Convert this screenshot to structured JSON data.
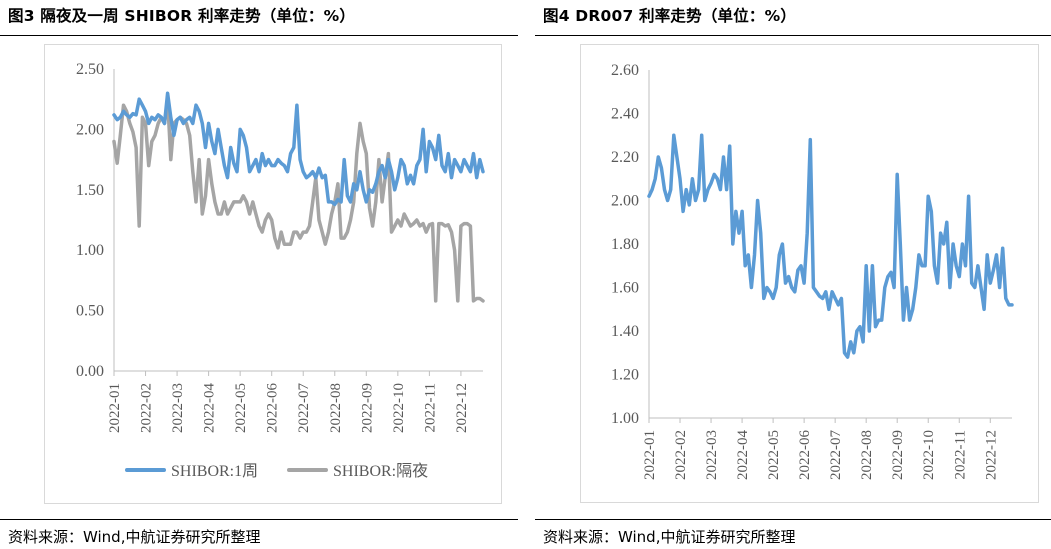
{
  "charts": [
    {
      "title": "图3  隔夜及一周 SHIBOR 利率走势（单位：%）",
      "source": "资料来源：Wind,中航证券研究所整理"
    },
    {
      "title": "图4  DR007 利率走势（单位：%）",
      "source": "资料来源：Wind,中航证券研究所整理"
    }
  ],
  "chart_data": [
    {
      "type": "line",
      "title": "图3  隔夜及一周 SHIBOR 利率走势（单位：%）",
      "x_ticks": [
        "2022-01",
        "2022-02",
        "2022-03",
        "2022-04",
        "2022-05",
        "2022-06",
        "2022-07",
        "2022-08",
        "2022-09",
        "2022-10",
        "2022-11",
        "2022-12"
      ],
      "y_ticks": [
        "0.00",
        "0.50",
        "1.00",
        "1.50",
        "2.00",
        "2.50"
      ],
      "ylim": [
        0,
        2.5
      ],
      "xlim": [
        0,
        11.7
      ],
      "grid": false,
      "legend_position": "bottom",
      "series": [
        {
          "name": "SHIBOR:1周",
          "color": "#5B9BD5",
          "x": [
            0.0,
            0.1,
            0.2,
            0.3,
            0.4,
            0.5,
            0.6,
            0.7,
            0.8,
            0.9,
            1.0,
            1.1,
            1.2,
            1.3,
            1.4,
            1.5,
            1.6,
            1.7,
            1.8,
            1.9,
            2.0,
            2.1,
            2.2,
            2.3,
            2.4,
            2.5,
            2.6,
            2.7,
            2.8,
            2.9,
            3.0,
            3.1,
            3.2,
            3.3,
            3.4,
            3.5,
            3.6,
            3.7,
            3.8,
            3.9,
            4.0,
            4.1,
            4.2,
            4.3,
            4.4,
            4.5,
            4.6,
            4.7,
            4.8,
            4.9,
            5.0,
            5.1,
            5.2,
            5.3,
            5.4,
            5.5,
            5.6,
            5.7,
            5.8,
            5.9,
            6.0,
            6.1,
            6.2,
            6.3,
            6.4,
            6.5,
            6.6,
            6.7,
            6.8,
            6.9,
            7.0,
            7.1,
            7.2,
            7.3,
            7.4,
            7.5,
            7.6,
            7.7,
            7.8,
            7.9,
            8.0,
            8.1,
            8.2,
            8.3,
            8.4,
            8.5,
            8.6,
            8.7,
            8.8,
            8.9,
            9.0,
            9.1,
            9.2,
            9.3,
            9.4,
            9.5,
            9.6,
            9.7,
            9.8,
            9.9,
            10.0,
            10.1,
            10.2,
            10.3,
            10.4,
            10.5,
            10.6,
            10.7,
            10.8,
            10.9,
            11.0,
            11.1,
            11.2,
            11.3,
            11.4,
            11.5,
            11.6,
            11.7
          ],
          "values": [
            2.12,
            2.08,
            2.1,
            2.15,
            2.12,
            2.1,
            2.13,
            2.12,
            2.25,
            2.2,
            2.15,
            2.05,
            2.1,
            2.08,
            2.12,
            2.1,
            2.05,
            2.3,
            2.1,
            1.95,
            2.08,
            2.1,
            2.05,
            2.08,
            2.1,
            2.05,
            2.2,
            2.15,
            2.05,
            1.85,
            2.05,
            1.9,
            1.8,
            2.0,
            1.85,
            1.7,
            1.6,
            1.85,
            1.72,
            1.65,
            2.0,
            1.95,
            1.85,
            1.65,
            1.7,
            1.75,
            1.65,
            1.8,
            1.7,
            1.75,
            1.7,
            1.7,
            1.75,
            1.72,
            1.7,
            1.65,
            1.8,
            1.85,
            2.2,
            1.75,
            1.65,
            1.6,
            1.62,
            1.65,
            1.6,
            1.68,
            1.6,
            1.62,
            1.4,
            1.4,
            1.38,
            1.42,
            1.4,
            1.75,
            1.45,
            1.4,
            1.55,
            1.5,
            1.65,
            1.5,
            1.4,
            1.5,
            1.48,
            1.55,
            1.65,
            1.7,
            1.6,
            1.75,
            1.65,
            1.5,
            1.6,
            1.75,
            1.7,
            1.55,
            1.62,
            1.55,
            1.7,
            1.75,
            2.0,
            1.65,
            1.9,
            1.85,
            1.75,
            1.95,
            1.7,
            1.65,
            1.8,
            1.6,
            1.75,
            1.7,
            1.65,
            1.75,
            1.7,
            1.65,
            1.8,
            1.6,
            1.75,
            1.65
          ]
        },
        {
          "name": "SHIBOR:隔夜",
          "color": "#A5A5A5",
          "x": [
            0.0,
            0.1,
            0.2,
            0.3,
            0.4,
            0.5,
            0.6,
            0.7,
            0.8,
            0.9,
            1.0,
            1.1,
            1.2,
            1.3,
            1.4,
            1.5,
            1.6,
            1.7,
            1.8,
            1.9,
            2.0,
            2.1,
            2.2,
            2.3,
            2.4,
            2.5,
            2.6,
            2.7,
            2.8,
            2.9,
            3.0,
            3.1,
            3.2,
            3.3,
            3.4,
            3.5,
            3.6,
            3.7,
            3.8,
            3.9,
            4.0,
            4.1,
            4.2,
            4.3,
            4.4,
            4.5,
            4.6,
            4.7,
            4.8,
            4.9,
            5.0,
            5.1,
            5.2,
            5.3,
            5.4,
            5.5,
            5.6,
            5.7,
            5.8,
            5.9,
            6.0,
            6.1,
            6.2,
            6.3,
            6.4,
            6.5,
            6.6,
            6.7,
            6.8,
            6.9,
            7.0,
            7.1,
            7.2,
            7.3,
            7.4,
            7.5,
            7.6,
            7.7,
            7.8,
            7.9,
            8.0,
            8.1,
            8.2,
            8.3,
            8.4,
            8.5,
            8.6,
            8.7,
            8.8,
            8.9,
            9.0,
            9.1,
            9.2,
            9.3,
            9.4,
            9.5,
            9.6,
            9.7,
            9.8,
            9.9,
            10.0,
            10.1,
            10.2,
            10.3,
            10.4,
            10.5,
            10.6,
            10.7,
            10.8,
            10.9,
            11.0,
            11.1,
            11.2,
            11.3,
            11.4,
            11.5,
            11.6,
            11.7
          ],
          "values": [
            1.9,
            1.72,
            1.95,
            2.2,
            2.15,
            2.05,
            1.98,
            1.85,
            1.2,
            2.1,
            2.05,
            1.7,
            1.9,
            1.95,
            2.05,
            2.1,
            2.05,
            2.25,
            1.75,
            2.05,
            2.08,
            2.1,
            2.08,
            2.05,
            1.95,
            1.65,
            1.4,
            1.75,
            1.3,
            1.45,
            1.75,
            1.55,
            1.4,
            1.3,
            1.3,
            1.4,
            1.3,
            1.35,
            1.4,
            1.4,
            1.4,
            1.45,
            1.4,
            1.3,
            1.4,
            1.3,
            1.2,
            1.15,
            1.25,
            1.3,
            1.25,
            1.1,
            1.02,
            1.15,
            1.05,
            1.05,
            1.05,
            1.15,
            1.15,
            1.1,
            1.15,
            1.15,
            1.2,
            1.4,
            1.6,
            1.25,
            1.15,
            1.05,
            1.15,
            1.3,
            1.4,
            1.55,
            1.1,
            1.1,
            1.15,
            1.25,
            1.4,
            1.8,
            2.05,
            1.9,
            1.8,
            1.35,
            1.2,
            1.4,
            1.75,
            1.4,
            1.6,
            1.8,
            1.15,
            1.2,
            1.25,
            1.2,
            1.3,
            1.25,
            1.2,
            1.22,
            1.25,
            1.2,
            1.22,
            1.15,
            1.21,
            1.22,
            0.58,
            1.22,
            1.22,
            1.2,
            1.21,
            1.15,
            1.0,
            0.58,
            1.2,
            1.22,
            1.22,
            1.2,
            0.58,
            0.6,
            0.6,
            0.58
          ]
        }
      ]
    },
    {
      "type": "line",
      "title": "图4  DR007 利率走势（单位：%）",
      "x_ticks": [
        "2022-01",
        "2022-02",
        "2022-03",
        "2022-04",
        "2022-05",
        "2022-06",
        "2022-07",
        "2022-08",
        "2022-09",
        "2022-10",
        "2022-11",
        "2022-12"
      ],
      "y_ticks": [
        "1.00",
        "1.20",
        "1.40",
        "1.60",
        "1.80",
        "2.00",
        "2.20",
        "2.40",
        "2.60"
      ],
      "ylim": [
        1.0,
        2.6
      ],
      "xlim": [
        0,
        11.7
      ],
      "grid": false,
      "legend_position": "none",
      "series": [
        {
          "name": "",
          "color": "#5B9BD5",
          "x": [
            0.0,
            0.1,
            0.2,
            0.3,
            0.4,
            0.5,
            0.6,
            0.7,
            0.8,
            0.9,
            1.0,
            1.1,
            1.2,
            1.3,
            1.4,
            1.5,
            1.6,
            1.7,
            1.8,
            1.9,
            2.0,
            2.1,
            2.2,
            2.3,
            2.4,
            2.5,
            2.6,
            2.7,
            2.8,
            2.9,
            3.0,
            3.1,
            3.2,
            3.3,
            3.4,
            3.5,
            3.6,
            3.7,
            3.8,
            3.9,
            4.0,
            4.1,
            4.2,
            4.3,
            4.4,
            4.5,
            4.6,
            4.7,
            4.8,
            4.9,
            5.0,
            5.1,
            5.2,
            5.3,
            5.4,
            5.5,
            5.6,
            5.7,
            5.8,
            5.9,
            6.0,
            6.1,
            6.2,
            6.3,
            6.4,
            6.5,
            6.6,
            6.7,
            6.8,
            6.9,
            7.0,
            7.1,
            7.2,
            7.3,
            7.4,
            7.5,
            7.6,
            7.7,
            7.8,
            7.9,
            8.0,
            8.1,
            8.2,
            8.3,
            8.4,
            8.5,
            8.6,
            8.7,
            8.8,
            8.9,
            9.0,
            9.1,
            9.2,
            9.3,
            9.4,
            9.5,
            9.6,
            9.7,
            9.8,
            9.9,
            10.0,
            10.1,
            10.2,
            10.3,
            10.4,
            10.5,
            10.6,
            10.7,
            10.8,
            10.9,
            11.0,
            11.1,
            11.2,
            11.3,
            11.4,
            11.5,
            11.6,
            11.7
          ],
          "values": [
            2.02,
            2.05,
            2.1,
            2.2,
            2.15,
            2.05,
            2.0,
            2.05,
            2.3,
            2.2,
            2.1,
            1.95,
            2.05,
            1.98,
            2.1,
            2.0,
            2.05,
            2.3,
            2.0,
            2.05,
            2.08,
            2.12,
            2.1,
            2.05,
            2.2,
            2.05,
            2.25,
            1.8,
            1.95,
            1.85,
            1.95,
            1.7,
            1.75,
            1.6,
            1.75,
            2.0,
            1.85,
            1.55,
            1.6,
            1.58,
            1.55,
            1.6,
            1.75,
            1.8,
            1.62,
            1.65,
            1.6,
            1.58,
            1.68,
            1.7,
            1.62,
            1.85,
            2.28,
            1.6,
            1.58,
            1.56,
            1.55,
            1.58,
            1.5,
            1.58,
            1.55,
            1.52,
            1.55,
            1.3,
            1.28,
            1.35,
            1.3,
            1.4,
            1.42,
            1.35,
            1.7,
            1.4,
            1.7,
            1.42,
            1.45,
            1.45,
            1.6,
            1.65,
            1.67,
            1.6,
            2.12,
            1.8,
            1.45,
            1.6,
            1.45,
            1.5,
            1.6,
            1.75,
            1.7,
            1.7,
            2.02,
            1.95,
            1.7,
            1.62,
            1.85,
            1.8,
            1.9,
            1.6,
            1.8,
            1.7,
            1.65,
            1.8,
            1.7,
            2.02,
            1.62,
            1.6,
            1.7,
            1.6,
            1.5,
            1.75,
            1.62,
            1.68,
            1.75,
            1.6,
            1.78,
            1.55,
            1.52,
            1.52
          ]
        }
      ]
    }
  ]
}
